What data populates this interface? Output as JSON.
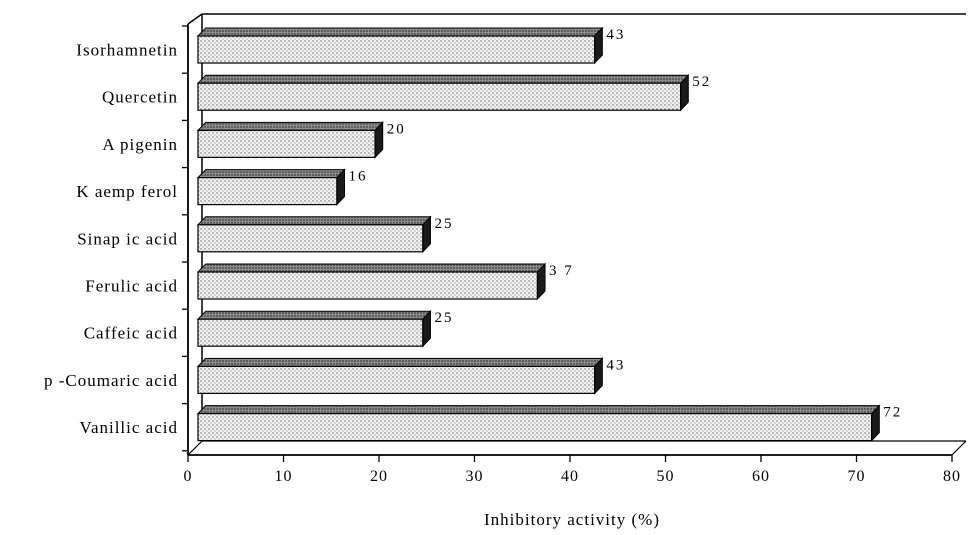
{
  "chart_data": {
    "type": "bar",
    "orientation": "horizontal",
    "style": "3d",
    "title": "",
    "xlabel": "Inhibitory activity (%)",
    "ylabel": "",
    "categories": [
      "Isorhamnetin",
      "Quercetin",
      "Apigenin",
      "Kaempferol",
      "Sinapic acid",
      "Ferulic acid",
      "Caffeic acid",
      "p-Coumaric acid",
      "Vanillic acid"
    ],
    "category_labels": [
      "Isorhamnetin",
      "Quercetin",
      "A pigenin",
      "K aemp ferol",
      "Sinap ic acid",
      "Ferulic acid",
      "Caffeic acid",
      "p -Coumaric acid",
      "Vanillic acid"
    ],
    "values": [
      43,
      52,
      20,
      16,
      25,
      37,
      25,
      43,
      72
    ],
    "value_labels": [
      "43",
      "52",
      "20",
      "16",
      "25",
      "3 7",
      "25",
      "43",
      "72"
    ],
    "xlim": [
      0,
      80
    ],
    "xticks": [
      0,
      10,
      20,
      30,
      40,
      50,
      60,
      70,
      80
    ],
    "xtick_labels": [
      "0",
      "10",
      "20",
      "30",
      "40",
      "50",
      "60",
      "70",
      "80"
    ],
    "grid": false,
    "legend": "none",
    "colors": {
      "bar_face": "#e6e6e6",
      "bar_top": "#7a7a7a",
      "bar_side": "#1a1a1a",
      "axis": "#000000"
    }
  }
}
